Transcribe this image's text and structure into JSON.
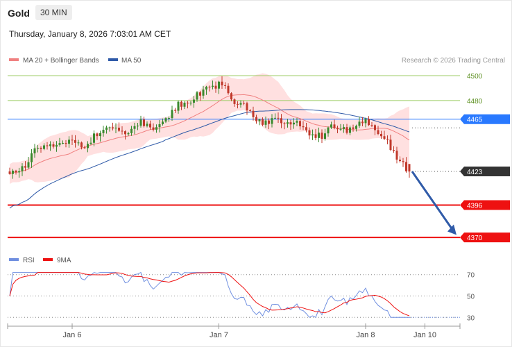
{
  "header": {
    "instrument": "Gold",
    "timeframe": "30 MIN",
    "datetime": "Thursday, January 8, 2026 7:03:01 AM CET"
  },
  "legend": {
    "ma20_label": "MA 20 + Bollinger Bands",
    "ma50_label": "MA 50",
    "credit": "Research © 2026 Trading Central",
    "rsi_label": "RSI",
    "rsi_ma_label": "9MA"
  },
  "colors": {
    "up": "#3a8a2e",
    "down": "#c0392b",
    "ma20": "#f08080",
    "ma50": "#2f5aa8",
    "band_fill": "#ffe0e0",
    "resistance": "#9ccc65",
    "pivot": "#2979ff",
    "support": "#ee1111",
    "arrow": "#2f5aa8",
    "rsi": "#6f8fe0",
    "rsi_ma": "#ee1111"
  },
  "chart_data": [
    {
      "type": "candlestick",
      "ylim": [
        4360,
        4505
      ],
      "x_ticks": [
        {
          "label": "Jan 6",
          "index": 20
        },
        {
          "label": "Jan 7",
          "index": 67
        },
        {
          "label": "Jan 8",
          "index": 114
        },
        {
          "label": "Jan 10",
          "index": 133
        }
      ],
      "levels": [
        {
          "value": 4500,
          "label": "4500",
          "kind": "resistance"
        },
        {
          "value": 4480,
          "label": "4480",
          "kind": "resistance"
        },
        {
          "value": 4465,
          "label": "4465",
          "kind": "pivot"
        },
        {
          "value": 4423,
          "label": "4423",
          "kind": "last"
        },
        {
          "value": 4396,
          "label": "4396",
          "kind": "support"
        },
        {
          "value": 4370,
          "label": "4370",
          "kind": "support"
        }
      ],
      "projection": {
        "from_value": 4423,
        "to_value": 4372
      },
      "series": [
        {
          "name": "MA 20 + Bollinger Bands"
        },
        {
          "name": "MA 50"
        }
      ]
    },
    {
      "type": "line",
      "ylim": [
        25,
        75
      ],
      "y_ticks": [
        70,
        50,
        30
      ],
      "series": [
        {
          "name": "RSI"
        },
        {
          "name": "9MA"
        }
      ]
    }
  ]
}
